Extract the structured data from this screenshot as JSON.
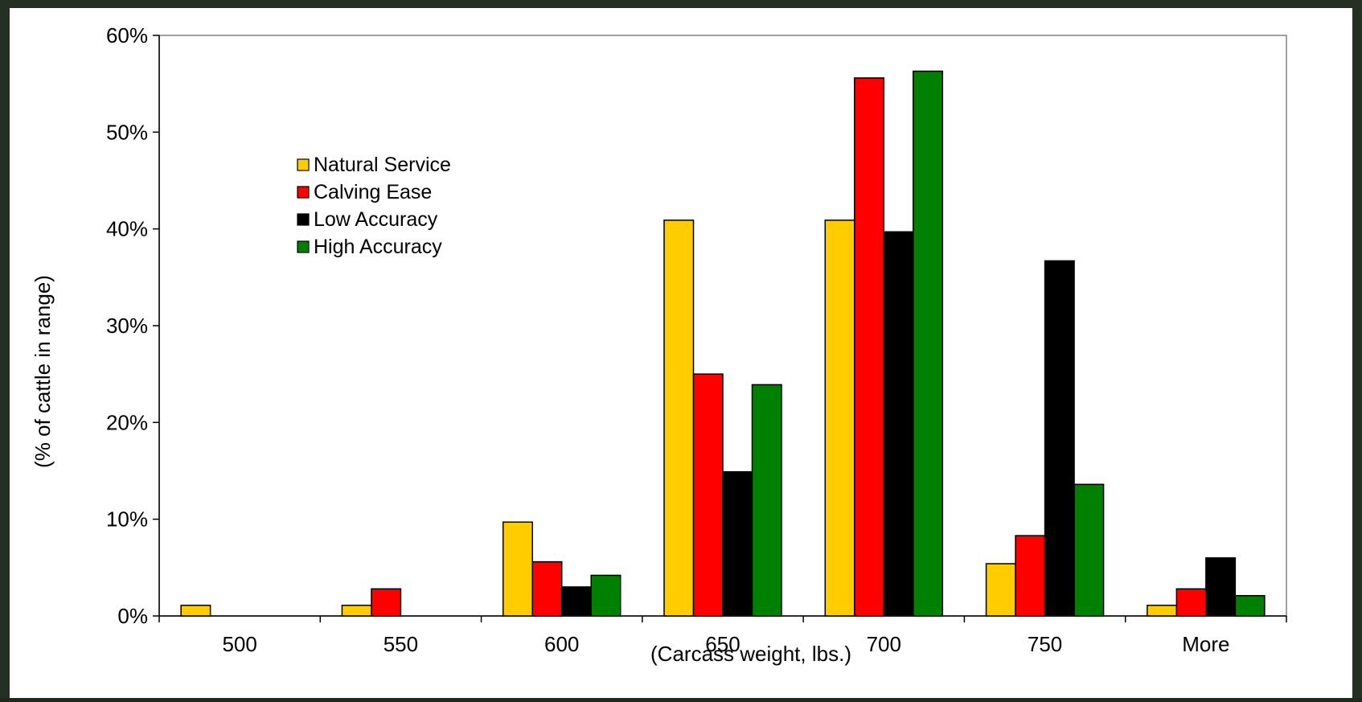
{
  "chart_data": {
    "type": "bar",
    "title": "",
    "xlabel": "(Carcass weight, lbs.)",
    "ylabel": "(% of cattle in range)",
    "categories": [
      "500",
      "550",
      "600",
      "650",
      "700",
      "750",
      "More"
    ],
    "ylim": [
      0,
      60
    ],
    "yticks": [
      0,
      10,
      20,
      30,
      40,
      50,
      60
    ],
    "ytick_labels": [
      "0%",
      "10%",
      "20%",
      "30%",
      "40%",
      "50%",
      "60%"
    ],
    "grid": false,
    "legend_position": "top-left",
    "series": [
      {
        "name": "Natural Service",
        "color": "#FFCC00",
        "values": [
          1.1,
          1.1,
          9.7,
          40.9,
          40.9,
          5.4,
          1.1
        ]
      },
      {
        "name": "Calving Ease",
        "color": "#FF0000",
        "values": [
          0,
          2.8,
          5.6,
          25.0,
          55.6,
          8.3,
          2.8
        ]
      },
      {
        "name": "Low Accuracy",
        "color": "#000000",
        "values": [
          0,
          0,
          3.0,
          14.9,
          39.7,
          36.7,
          6.0
        ]
      },
      {
        "name": "High Accuracy",
        "color": "#008000",
        "values": [
          0,
          0,
          4.2,
          23.9,
          56.3,
          13.6,
          2.1
        ]
      }
    ]
  }
}
